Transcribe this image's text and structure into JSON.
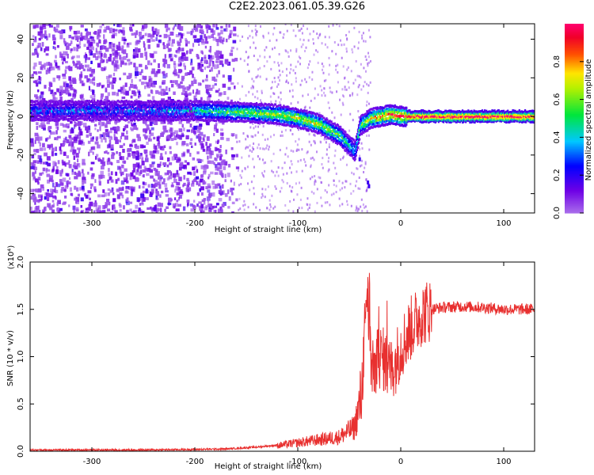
{
  "title": "C2E2.2023.061.05.39.G26",
  "chart_data": [
    {
      "type": "heatmap",
      "xlabel": "Height of straight line (km)",
      "ylabel": "Frequency (Hz)",
      "xlim": [
        -360,
        130
      ],
      "ylim": [
        -50,
        48
      ],
      "xticks": [
        -300,
        -200,
        -100,
        0,
        100
      ],
      "yticks": [
        -40,
        -20,
        0,
        20,
        40
      ],
      "colorbar": {
        "label": "Normalized spectral amplitude",
        "range": [
          0,
          1
        ],
        "ticks": [
          0.0,
          0.2,
          0.4,
          0.6,
          0.8
        ]
      },
      "ridge": {
        "description_points_x": [
          -355,
          -300,
          -250,
          -200,
          -150,
          -120,
          -100,
          -80,
          -60,
          -45,
          -40,
          -30,
          -20,
          -10,
          0,
          20,
          130
        ],
        "frequency_hz": [
          3,
          3,
          3,
          3,
          2,
          1,
          -1,
          -4,
          -10,
          -18,
          -5,
          -1,
          0,
          1,
          0,
          0,
          0
        ],
        "peak_amplitude": [
          0.35,
          0.35,
          0.35,
          0.45,
          0.6,
          0.65,
          0.7,
          0.7,
          0.55,
          0.4,
          0.55,
          0.7,
          0.85,
          0.9,
          0.95,
          1.0,
          1.0
        ]
      }
    },
    {
      "type": "line",
      "xlabel": "Height of straight line (km)",
      "ylabel": "SNR (10 * v/v)",
      "multiplier": "(x10⁴)",
      "xlim": [
        -360,
        130
      ],
      "ylim": [
        0,
        2.0
      ],
      "xticks": [
        -300,
        -200,
        -100,
        0,
        100
      ],
      "yticks": [
        0.0,
        0.5,
        1.0,
        1.5,
        2.0
      ],
      "series": [
        {
          "color": "#e8302f",
          "x": [
            -360,
            -300,
            -250,
            -200,
            -170,
            -140,
            -120,
            -100,
            -80,
            -60,
            -45,
            -38,
            -33,
            -30,
            -28,
            -25,
            -20,
            -15,
            -10,
            -5,
            0,
            10,
            20,
            30,
            40,
            60,
            80,
            100,
            130
          ],
          "y": [
            0.01,
            0.01,
            0.01,
            0.015,
            0.02,
            0.04,
            0.06,
            0.09,
            0.12,
            0.15,
            0.25,
            0.6,
            1.75,
            1.2,
            0.8,
            0.9,
            1.0,
            0.95,
            0.85,
            0.95,
            1.1,
            1.3,
            1.45,
            1.5,
            1.52,
            1.53,
            1.52,
            1.5,
            1.5
          ]
        }
      ]
    }
  ]
}
